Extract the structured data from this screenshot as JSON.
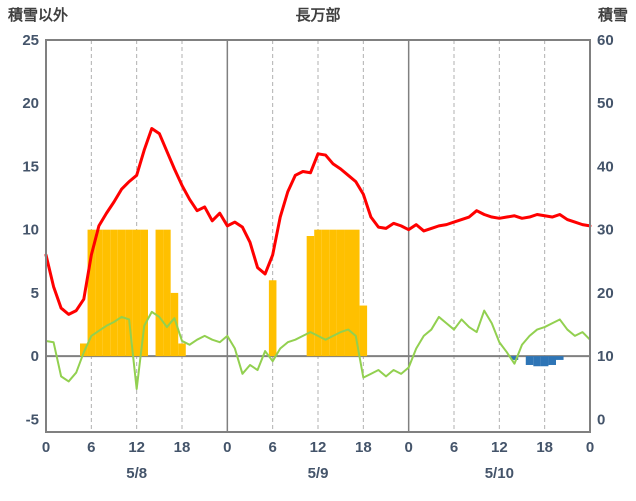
{
  "header": {
    "left_axis_title": "積雪以外",
    "station_title": "長万部",
    "right_axis_title": "積雪"
  },
  "chart_data": {
    "type": "combo",
    "title": "長万部",
    "x_axis": {
      "unit": "hour",
      "min": 0,
      "max": 72,
      "tick_hours": [
        0,
        6,
        12,
        18,
        24,
        30,
        36,
        42,
        48,
        54,
        60,
        66,
        72
      ],
      "tick_labels": [
        "0",
        "6",
        "12",
        "18",
        "0",
        "6",
        "12",
        "18",
        "0",
        "6",
        "12",
        "18",
        "0"
      ],
      "day_labels": [
        {
          "label": "5/8",
          "center_hour": 12
        },
        {
          "label": "5/9",
          "center_hour": 36
        },
        {
          "label": "5/10",
          "center_hour": 60
        }
      ]
    },
    "y_left": {
      "title": "積雪以外",
      "min": -6,
      "max": 25,
      "ticks": [
        -5,
        0,
        5,
        10,
        15,
        20,
        25
      ]
    },
    "y_right": {
      "title": "積雪",
      "ticks": [
        0,
        10,
        20,
        30,
        40,
        50,
        60
      ]
    },
    "grid": {
      "border_color": "#808080",
      "day_line_color": "#808080",
      "dash_color": "#b0b0b0",
      "zero_line_color": "#808080"
    },
    "series": [
      {
        "name": "bars-orange",
        "type": "bar",
        "color": "#ffc000",
        "hours": [
          5,
          6,
          7,
          8,
          9,
          10,
          11,
          12,
          13,
          15,
          16,
          17,
          18,
          30,
          35,
          36,
          37,
          38,
          39,
          40,
          41,
          42
        ],
        "values": [
          1,
          10,
          10,
          10,
          10,
          10,
          10,
          10,
          10,
          10,
          10,
          5,
          1,
          6,
          9.5,
          10,
          10,
          10,
          10,
          10,
          10,
          4
        ]
      },
      {
        "name": "bars-blue",
        "type": "bar",
        "color": "#2e75b6",
        "hours": [
          62,
          64,
          65,
          66,
          67,
          68
        ],
        "values": [
          -0.3,
          -0.7,
          -0.8,
          -0.8,
          -0.7,
          -0.3
        ]
      },
      {
        "name": "line-green",
        "type": "line",
        "color": "#92d050",
        "width": 2,
        "values": [
          1.2,
          1.1,
          -1.6,
          -2.0,
          -1.3,
          0.3,
          1.6,
          2.0,
          2.4,
          2.7,
          3.1,
          2.9,
          -2.6,
          2.4,
          3.5,
          3.1,
          2.3,
          3.0,
          1.2,
          0.9,
          1.3,
          1.6,
          1.3,
          1.1,
          1.6,
          0.6,
          -1.4,
          -0.7,
          -1.1,
          0.4,
          -0.4,
          0.6,
          1.1,
          1.3,
          1.6,
          1.9,
          1.6,
          1.3,
          1.6,
          1.9,
          2.1,
          1.6,
          -1.7,
          -1.4,
          -1.1,
          -1.6,
          -1.1,
          -1.4,
          -0.9,
          0.6,
          1.6,
          2.1,
          3.1,
          2.6,
          2.1,
          2.9,
          2.3,
          1.9,
          3.6,
          2.6,
          1.1,
          0.3,
          -0.6,
          0.9,
          1.6,
          2.1,
          2.3,
          2.6,
          2.9,
          2.1,
          1.6,
          1.9,
          1.3
        ]
      },
      {
        "name": "line-red",
        "type": "line",
        "color": "#ff0000",
        "width": 3,
        "values": [
          8.0,
          5.5,
          3.8,
          3.3,
          3.6,
          4.5,
          8.0,
          10.3,
          11.3,
          12.2,
          13.2,
          13.8,
          14.3,
          16.3,
          18.0,
          17.6,
          16.2,
          14.8,
          13.5,
          12.4,
          11.5,
          11.8,
          10.7,
          11.3,
          10.3,
          10.6,
          10.2,
          9.0,
          7.0,
          6.5,
          8.0,
          11.0,
          13.0,
          14.3,
          14.6,
          14.5,
          16.0,
          15.9,
          15.2,
          14.8,
          14.3,
          13.8,
          12.8,
          11.0,
          10.2,
          10.1,
          10.5,
          10.3,
          10.0,
          10.4,
          9.9,
          10.1,
          10.3,
          10.4,
          10.6,
          10.8,
          11.0,
          11.5,
          11.2,
          11.0,
          10.9,
          11.0,
          11.1,
          10.9,
          11.0,
          11.2,
          11.1,
          11.0,
          11.2,
          10.8,
          10.6,
          10.4,
          10.3
        ]
      }
    ]
  }
}
